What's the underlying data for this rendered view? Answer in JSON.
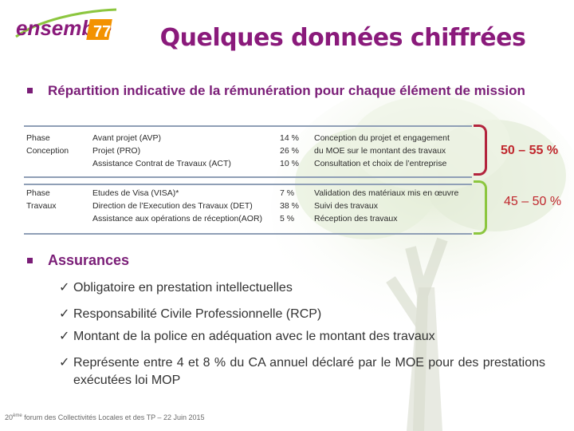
{
  "logo": {
    "text": "ensemble",
    "number": "77"
  },
  "title": "Quelques données chiffrées",
  "section1": {
    "heading": "Répartition indicative de la rémunération pour chaque élément de mission"
  },
  "table1": {
    "rows": [
      [
        "Phase",
        "Avant projet (AVP)",
        "14 %",
        "Conception du projet et engagement"
      ],
      [
        "Conception",
        "Projet (PRO)",
        "26 %",
        "du MOE sur le montant des travaux"
      ],
      [
        "",
        "Assistance Contrat de Travaux (ACT)",
        "10 %",
        "Consultation et choix de l’entreprise"
      ]
    ],
    "total": "50 – 55 %",
    "bracket_color": "#b3243d"
  },
  "table2": {
    "rows": [
      [
        "Phase",
        "Etudes de Visa (VISA)*",
        "7 %",
        "Validation des matériaux mis en œuvre"
      ],
      [
        "Travaux",
        "Direction de l’Execution des Travaux (DET)",
        "38 %",
        "Suivi des travaux"
      ],
      [
        "",
        "Assistance aux opérations de réception(AOR)",
        "5 %",
        "Réception des travaux"
      ]
    ],
    "total": "45 – 50 %",
    "bracket_color": "#8cc63f"
  },
  "section2": {
    "heading": "Assurances",
    "items": [
      "Obligatoire en prestation intellectuelles",
      "Responsabilité Civile Professionnelle (RCP)",
      "Montant de la police en adéquation avec le montant des travaux",
      "Représente entre 4 et 8 % du CA annuel déclaré par le MOE pour des prestations exécutées loi MOP"
    ]
  },
  "footer": {
    "num": "20",
    "sup": "ème",
    "text": " forum des Collectivités Locales et des TP – 22 Juin 2015"
  },
  "colors": {
    "title": "#8a1a7b",
    "accent": "#7a1d77",
    "highlight": "#c0272d"
  }
}
